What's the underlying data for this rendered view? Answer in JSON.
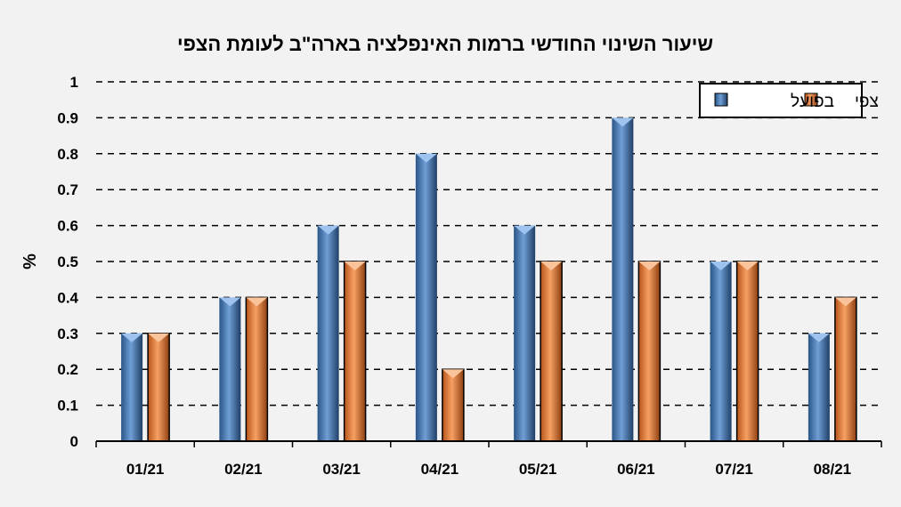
{
  "chart_data": {
    "type": "bar",
    "title": "שיעור השינוי החודשי ברמות האינפלציה בארה\"ב לעומת הצפי",
    "ylabel": "%",
    "xlabel": "",
    "ylim": [
      0,
      1
    ],
    "yticks": [
      "0",
      "0.1",
      "0.2",
      "0.3",
      "0.4",
      "0.5",
      "0.6",
      "0.7",
      "0.8",
      "0.9",
      "1"
    ],
    "grid": true,
    "legend_position": "top-right",
    "categories": [
      "01/21",
      "02/21",
      "03/21",
      "04/21",
      "05/21",
      "06/21",
      "07/21",
      "08/21"
    ],
    "series": [
      {
        "name": "בפועל",
        "color": "#4f81bd",
        "values": [
          0.3,
          0.4,
          0.6,
          0.8,
          0.6,
          0.9,
          0.5,
          0.3
        ]
      },
      {
        "name": "צפי",
        "color": "#f07c28",
        "values": [
          0.3,
          0.4,
          0.5,
          0.2,
          0.5,
          0.5,
          0.5,
          0.4
        ]
      }
    ]
  }
}
